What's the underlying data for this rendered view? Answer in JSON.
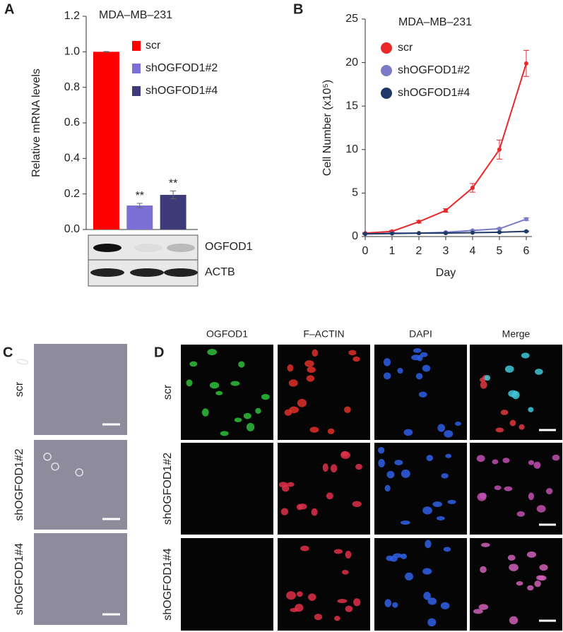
{
  "figure": {
    "panel_labels": [
      "A",
      "B",
      "C",
      "D"
    ]
  },
  "chart_data": [
    {
      "type": "bar",
      "title": "MDA–MB–231",
      "y_label": "Relative mRNA levels",
      "categories": [
        null
      ],
      "series": [
        {
          "name": "scr",
          "color": "#ff0000",
          "values": [
            1.0
          ],
          "errors": [
            0.002
          ]
        },
        {
          "name": "shOGFOD1#2",
          "color": "#7b6fd6",
          "values": [
            0.135
          ],
          "errors": [
            0.012
          ],
          "annotation": "**"
        },
        {
          "name": "shOGFOD1#4",
          "color": "#3e3b78",
          "values": [
            0.195
          ],
          "errors": [
            0.022
          ],
          "annotation": "**"
        }
      ],
      "ylim": [
        0,
        1.2
      ],
      "yticks": [
        {
          "value": 0,
          "label": "0.0"
        },
        {
          "value": 0.2,
          "label": "0.2"
        },
        {
          "value": 0.4,
          "label": "0.4"
        },
        {
          "value": 0.6,
          "label": "0.6"
        },
        {
          "value": 0.8,
          "label": "0.8"
        },
        {
          "value": 1,
          "label": "1.0"
        },
        {
          "value": 1.2,
          "label": "1.2"
        }
      ],
      "grid": false
    },
    {
      "type": "line",
      "title": "MDA–MB–231",
      "x_label": "Day",
      "y_label": "Cell Number (x10⁵)",
      "x": [
        0,
        1,
        2,
        3,
        4,
        5,
        6
      ],
      "series": [
        {
          "name": "scr",
          "color": "#e8282a",
          "values": [
            0.4,
            0.6,
            1.7,
            3.0,
            5.6,
            10.0,
            19.9
          ],
          "errors": [
            0.05,
            0.1,
            0.15,
            0.2,
            0.5,
            1.1,
            1.5
          ]
        },
        {
          "name": "shOGFOD1#2",
          "color": "#7b7bc8",
          "values": [
            0.3,
            0.4,
            0.4,
            0.5,
            0.7,
            0.9,
            2.0
          ],
          "errors": [
            0.03,
            0.03,
            0.04,
            0.05,
            0.06,
            0.08,
            0.15
          ]
        },
        {
          "name": "shOGFOD1#4",
          "color": "#1f3a68",
          "values": [
            0.3,
            0.35,
            0.4,
            0.4,
            0.45,
            0.5,
            0.6
          ],
          "errors": [
            0.03,
            0.03,
            0.03,
            0.04,
            0.04,
            0.05,
            0.05
          ]
        }
      ],
      "xlim": [
        0,
        6
      ],
      "xticks": [
        0,
        1,
        2,
        3,
        4,
        5,
        6
      ],
      "ylim": [
        0,
        25
      ],
      "yticks": [
        0,
        5,
        10,
        15,
        20,
        25
      ],
      "grid": false
    }
  ],
  "blot": {
    "labels": [
      "OGFOD1",
      "ACTB"
    ]
  },
  "micrographs": {
    "row_labels": [
      "scr",
      "shOGFOD1#2",
      "shOGFOD1#4"
    ]
  },
  "fluorescence": {
    "columns": [
      "OGFOD1",
      "F–ACTIN",
      "DAPI",
      "Merge"
    ],
    "row_labels": [
      "scr",
      "shOGFOD1#2",
      "shOGFOD1#4"
    ]
  }
}
